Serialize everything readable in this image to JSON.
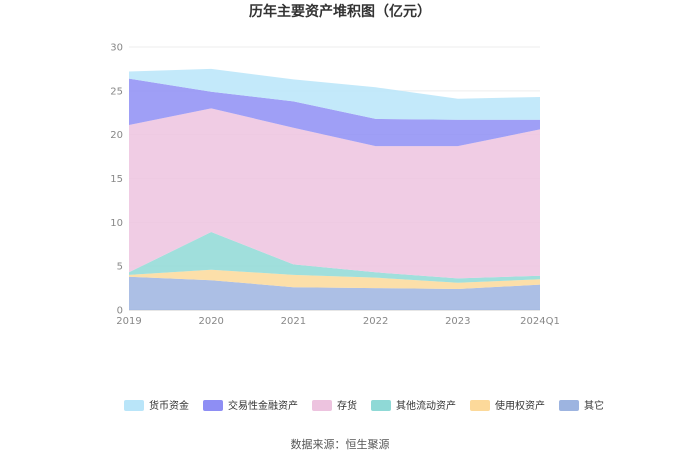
{
  "chart_data": {
    "type": "area",
    "stacked": true,
    "title": "历年主要资产堆积图（亿元）",
    "categories": [
      "2019",
      "2020",
      "2021",
      "2022",
      "2023",
      "2024Q1"
    ],
    "ylim": [
      0,
      30
    ],
    "yticks": [
      "0",
      "5",
      "10",
      "15",
      "20",
      "25",
      "30"
    ],
    "grid": true,
    "legend_position": "bottom",
    "series": [
      {
        "name": "其它",
        "color": "#9db4e0",
        "values": [
          3.8,
          3.4,
          2.6,
          2.5,
          2.4,
          2.9
        ]
      },
      {
        "name": "使用权资产",
        "color": "#fcd99a",
        "values": [
          0.2,
          1.2,
          1.4,
          1.2,
          0.7,
          0.6
        ]
      },
      {
        "name": "其他流动资产",
        "color": "#8fd9d6",
        "values": [
          0.3,
          4.3,
          1.2,
          0.6,
          0.5,
          0.4
        ]
      },
      {
        "name": "存货",
        "color": "#edc3df",
        "values": [
          16.8,
          14.1,
          15.6,
          14.4,
          15.1,
          16.7
        ]
      },
      {
        "name": "交易性金融资产",
        "color": "#8e8ef4",
        "values": [
          5.3,
          1.9,
          3.0,
          3.1,
          3.0,
          1.1
        ]
      },
      {
        "name": "货币资金",
        "color": "#b9e5f9",
        "values": [
          0.8,
          2.6,
          2.5,
          3.6,
          2.4,
          2.6
        ]
      }
    ],
    "legend_order": [
      "货币资金",
      "交易性金融资产",
      "存货",
      "其他流动资产",
      "使用权资产",
      "其它"
    ]
  },
  "footer": {
    "source": "数据来源：恒生聚源"
  }
}
